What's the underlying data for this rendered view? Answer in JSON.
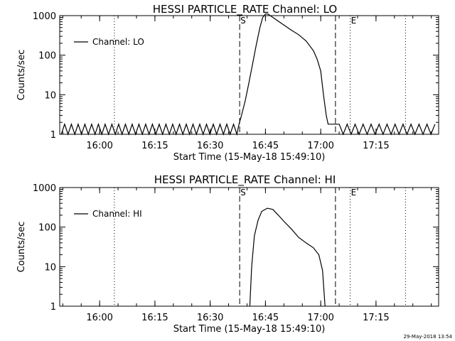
{
  "chart_data": [
    {
      "type": "line",
      "title": "HESSI PARTICLE_RATE Channel: LO",
      "xlabel": "Start Time (15-May-18 15:49:10)",
      "ylabel": "Counts/sec",
      "y_scale": "log",
      "ylim": [
        1,
        1000
      ],
      "xlim": [
        "15:49:10",
        "17:32:00"
      ],
      "x_ticks": [
        "16:00",
        "16:15",
        "16:30",
        "16:45",
        "17:00",
        "17:15"
      ],
      "y_ticks": [
        "1",
        "10",
        "100",
        "1000"
      ],
      "legend": {
        "label": "Channel: LO",
        "position": "top-left"
      },
      "markers": [
        {
          "label": "S",
          "time": "16:38:00",
          "style": "dashed"
        },
        {
          "label": "E",
          "time": "17:08:00",
          "style": "dotted"
        }
      ],
      "reference_lines": [
        {
          "time": "17:04:00",
          "style": "dashed"
        },
        {
          "time": "16:04:00",
          "style": "dotted"
        },
        {
          "time": "17:23:00",
          "style": "dotted"
        }
      ],
      "series": [
        {
          "name": "Channel: LO",
          "background_level": 1.8,
          "points": [
            [
              "16:37:50",
              1.8
            ],
            [
              "16:38:30",
              3
            ],
            [
              "16:39:30",
              7
            ],
            [
              "16:40:30",
              20
            ],
            [
              "16:41:30",
              60
            ],
            [
              "16:42:30",
              180
            ],
            [
              "16:43:30",
              500
            ],
            [
              "16:44:15",
              900
            ],
            [
              "16:45:00",
              1100
            ],
            [
              "16:45:40",
              1100
            ],
            [
              "16:47:00",
              900
            ],
            [
              "16:48:30",
              720
            ],
            [
              "16:50:00",
              580
            ],
            [
              "16:52:00",
              430
            ],
            [
              "16:54:00",
              330
            ],
            [
              "16:56:00",
              230
            ],
            [
              "16:58:00",
              130
            ],
            [
              "16:59:00",
              80
            ],
            [
              "17:00:00",
              40
            ],
            [
              "17:00:45",
              10
            ],
            [
              "17:01:30",
              3
            ],
            [
              "17:02:00",
              1.8
            ],
            [
              "17:05:00",
              1.8
            ]
          ]
        }
      ]
    },
    {
      "type": "line",
      "title": "HESSI PARTICLE_RATE Channel: HI",
      "xlabel": "Start Time (15-May-18 15:49:10)",
      "ylabel": "Counts/sec",
      "y_scale": "log",
      "ylim": [
        1,
        1000
      ],
      "xlim": [
        "15:49:10",
        "17:32:00"
      ],
      "x_ticks": [
        "16:00",
        "16:15",
        "16:30",
        "16:45",
        "17:00",
        "17:15"
      ],
      "y_ticks": [
        "1",
        "10",
        "100",
        "1000"
      ],
      "legend": {
        "label": "Channel: HI",
        "position": "top-left"
      },
      "markers": [
        {
          "label": "S",
          "time": "16:38:00",
          "style": "dashed"
        },
        {
          "label": "E",
          "time": "17:08:00",
          "style": "dotted"
        }
      ],
      "reference_lines": [
        {
          "time": "17:04:00",
          "style": "dashed"
        },
        {
          "time": "16:04:00",
          "style": "dotted"
        },
        {
          "time": "17:23:00",
          "style": "dotted"
        }
      ],
      "series": [
        {
          "name": "Channel: HI",
          "points": [
            [
              "16:40:45",
              1
            ],
            [
              "16:41:15",
              10
            ],
            [
              "16:42:00",
              60
            ],
            [
              "16:43:00",
              150
            ],
            [
              "16:44:00",
              250
            ],
            [
              "16:45:30",
              300
            ],
            [
              "16:47:00",
              280
            ],
            [
              "16:48:30",
              200
            ],
            [
              "16:50:00",
              140
            ],
            [
              "16:52:00",
              90
            ],
            [
              "16:54:00",
              55
            ],
            [
              "16:56:00",
              40
            ],
            [
              "16:58:00",
              30
            ],
            [
              "16:59:30",
              20
            ],
            [
              "17:00:30",
              8
            ],
            [
              "17:01:10",
              1
            ]
          ]
        }
      ]
    }
  ],
  "footer": {
    "timestamp": "29-May-2018 13:54"
  }
}
